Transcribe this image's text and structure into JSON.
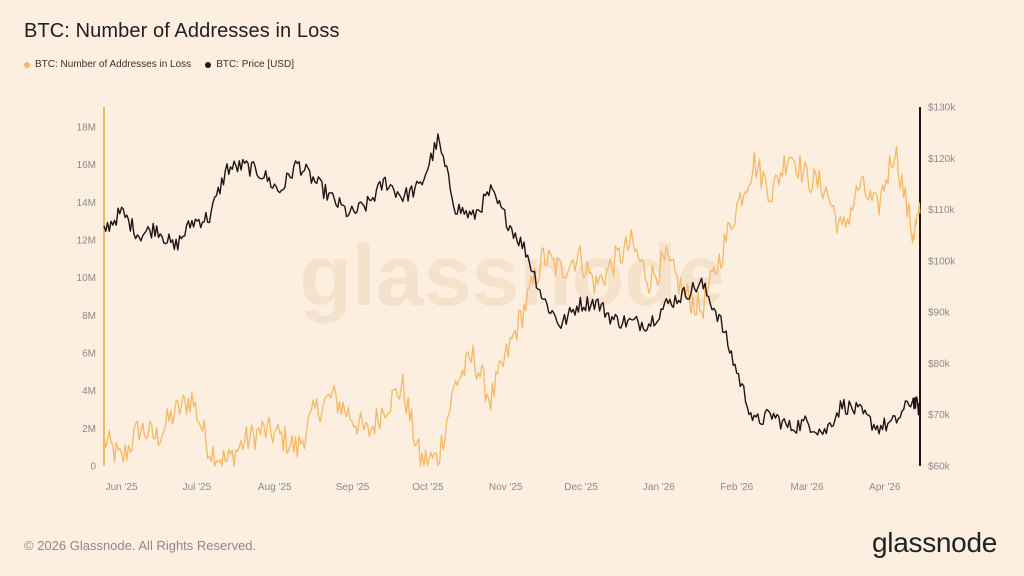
{
  "header": {
    "title": "BTC: Number of Addresses in Loss"
  },
  "legend": [
    {
      "label": "BTC: Number of Addresses in Loss",
      "color": "#f6b864"
    },
    {
      "label": "BTC: Price [USD]",
      "color": "#1e1416"
    }
  ],
  "footer": {
    "copyright": "© 2026 Glassnode. All Rights Reserved.",
    "brand": "glassnode",
    "watermark": "glassnode"
  },
  "colors": {
    "background": "#fcefe0",
    "addresses": "#f6b864",
    "price": "#1e1416"
  },
  "chart_data": {
    "type": "line",
    "x_ticks": [
      "Jun '25",
      "Jul '25",
      "Aug '25",
      "Sep '25",
      "Oct '25",
      "Nov '25",
      "Dec '25",
      "Jan '26",
      "Feb '26",
      "Mar '26",
      "Apr '26"
    ],
    "left_axis": {
      "ylim": [
        0,
        18000000
      ],
      "ticks": [
        "0",
        "2M",
        "4M",
        "6M",
        "8M",
        "10M",
        "12M",
        "14M",
        "16M",
        "18M"
      ]
    },
    "right_axis": {
      "ylim": [
        60000,
        130000
      ],
      "ticks": [
        "$60k",
        "$70k",
        "$80k",
        "$90k",
        "$100k",
        "$110k",
        "$120k",
        "$130k"
      ]
    },
    "series": [
      {
        "name": "BTC: Number of Addresses in Loss",
        "axis": "left",
        "x": [
          "2025-05-25",
          "2025-06-01",
          "2025-06-08",
          "2025-06-15",
          "2025-06-22",
          "2025-06-29",
          "2025-07-06",
          "2025-07-13",
          "2025-07-20",
          "2025-07-27",
          "2025-08-03",
          "2025-08-10",
          "2025-08-17",
          "2025-08-24",
          "2025-08-31",
          "2025-09-07",
          "2025-09-14",
          "2025-09-21",
          "2025-09-28",
          "2025-10-05",
          "2025-10-12",
          "2025-10-19",
          "2025-10-26",
          "2025-11-02",
          "2025-11-09",
          "2025-11-16",
          "2025-11-23",
          "2025-11-30",
          "2025-12-07",
          "2025-12-14",
          "2025-12-21",
          "2025-12-28",
          "2026-01-04",
          "2026-01-11",
          "2026-01-18",
          "2026-01-25",
          "2026-02-01",
          "2026-02-08",
          "2026-02-15",
          "2026-02-22",
          "2026-03-01",
          "2026-03-08",
          "2026-03-15",
          "2026-03-22",
          "2026-03-29",
          "2026-04-05",
          "2026-04-12",
          "2026-04-15"
        ],
        "values": [
          1400000,
          300000,
          2000000,
          1500000,
          2800000,
          3600000,
          900000,
          200000,
          1300000,
          1900000,
          1600000,
          900000,
          2900000,
          3700000,
          2700000,
          1700000,
          3200000,
          4200000,
          300000,
          400000,
          4400000,
          5800000,
          3500000,
          6100000,
          8600000,
          11100000,
          10400000,
          11200000,
          9600000,
          10800000,
          11800000,
          9900000,
          10900000,
          9200000,
          8300000,
          10900000,
          13800000,
          16100000,
          14500000,
          16700000,
          15300000,
          14800000,
          12400000,
          14900000,
          13600000,
          16900000,
          12300000,
          13400000
        ]
      },
      {
        "name": "BTC: Price [USD]",
        "axis": "right",
        "x": [
          "2025-05-25",
          "2025-06-01",
          "2025-06-08",
          "2025-06-15",
          "2025-06-22",
          "2025-06-29",
          "2025-07-06",
          "2025-07-13",
          "2025-07-20",
          "2025-07-27",
          "2025-08-03",
          "2025-08-10",
          "2025-08-17",
          "2025-08-24",
          "2025-08-31",
          "2025-09-07",
          "2025-09-14",
          "2025-09-21",
          "2025-09-28",
          "2025-10-05",
          "2025-10-12",
          "2025-10-19",
          "2025-10-26",
          "2025-11-02",
          "2025-11-09",
          "2025-11-16",
          "2025-11-23",
          "2025-11-30",
          "2025-12-07",
          "2025-12-14",
          "2025-12-21",
          "2025-12-28",
          "2026-01-04",
          "2026-01-11",
          "2026-01-18",
          "2026-01-25",
          "2026-02-01",
          "2026-02-08",
          "2026-02-15",
          "2026-02-22",
          "2026-03-01",
          "2026-03-08",
          "2026-03-15",
          "2026-03-22",
          "2026-03-29",
          "2026-04-05",
          "2026-04-12",
          "2026-04-15"
        ],
        "values": [
          106000,
          109500,
          105000,
          106500,
          102500,
          107500,
          108500,
          118000,
          118500,
          117000,
          113500,
          119000,
          115500,
          112000,
          109000,
          111000,
          115500,
          112500,
          114500,
          123500,
          110500,
          108500,
          113500,
          107500,
          102000,
          92500,
          87500,
          91500,
          92000,
          88500,
          88000,
          87800,
          91500,
          93500,
          95500,
          89000,
          78500,
          68500,
          70000,
          67500,
          68500,
          66500,
          72000,
          70500,
          67500,
          68500,
          73000,
          71000
        ]
      }
    ]
  }
}
